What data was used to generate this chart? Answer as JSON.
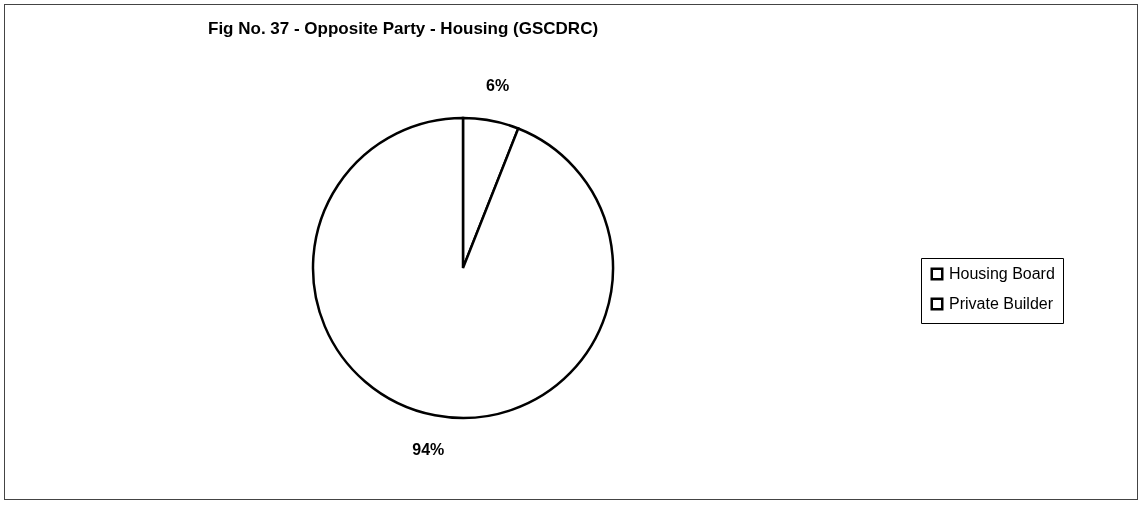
{
  "chart_data": {
    "type": "pie",
    "title": "Fig No. 37 - Opposite Party - Housing (GSCDRC)",
    "categories": [
      "Housing Board",
      "Private Builder"
    ],
    "values": [
      6,
      94
    ],
    "colors": [
      "#ffffff",
      "#ffffff"
    ],
    "value_labels": [
      "6%",
      "94%"
    ],
    "legend": "right"
  }
}
